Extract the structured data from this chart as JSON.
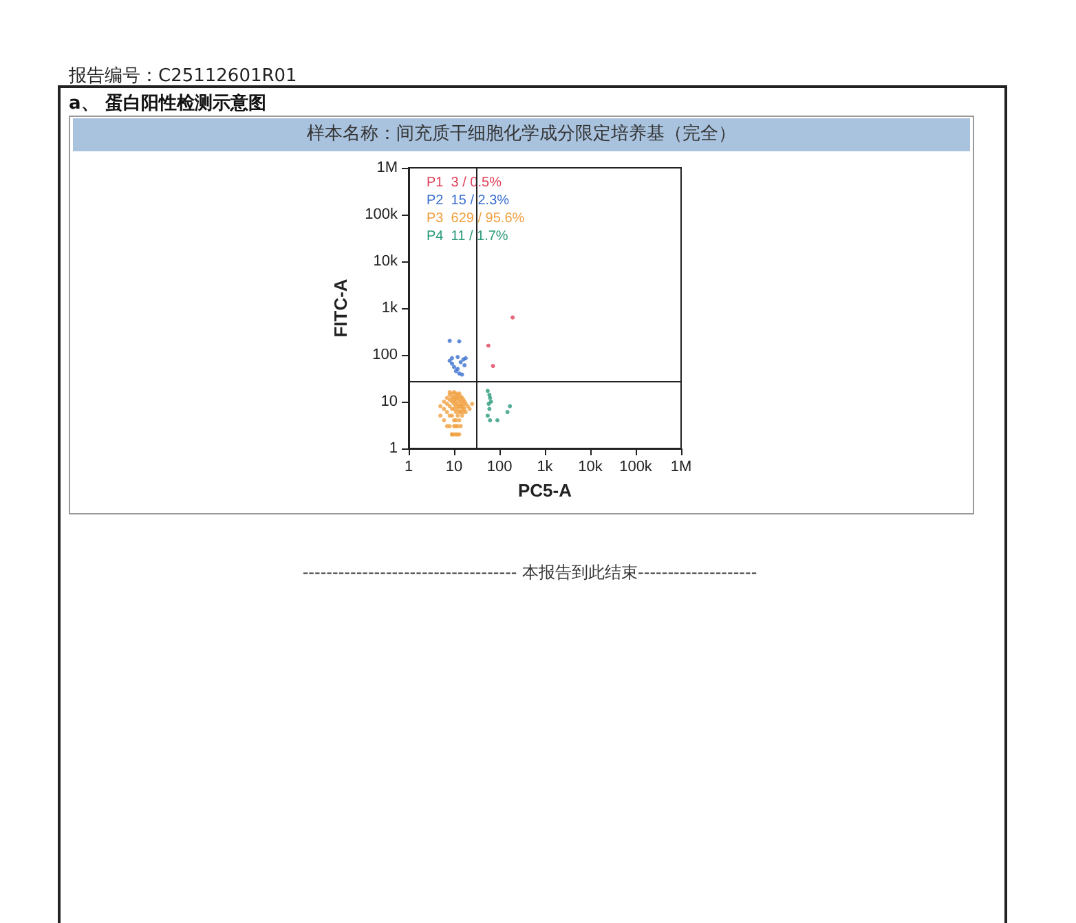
{
  "chart_data": {
    "type": "scatter",
    "title": "样本名称：间充质干细胞化学成分限定培养基（完全）",
    "subtitle": "a、 蛋白阳性检测示意图",
    "xlabel": "PC5-A",
    "ylabel": "FITC-A",
    "log": "xy",
    "grid": false,
    "legend": "top left",
    "marker": "circle",
    "xlim": [
      1,
      1000000
    ],
    "ylim": [
      1,
      1000000
    ],
    "xticks": [
      1,
      10,
      100,
      {
        "value": 1000,
        "label": "1k"
      },
      {
        "value": 10000,
        "label": "10k"
      },
      {
        "value": 100000,
        "label": "100k"
      },
      {
        "value": 1000000,
        "label": "1M"
      }
    ],
    "yticks": [
      1,
      10,
      100,
      {
        "value": 1000,
        "label": "1k"
      },
      {
        "value": 10000,
        "label": "10k"
      },
      {
        "value": 100000,
        "label": "100k"
      },
      {
        "value": 1000000,
        "label": "1M"
      }
    ],
    "ref_lines": [
      {
        "axis": "x",
        "value": 31,
        "color": "#222222"
      },
      {
        "axis": "y",
        "value": 28,
        "color": "#222222"
      }
    ],
    "annotations": [
      "报告编号：C25112601R01",
      "------------------------------------ 本报告到此结束--------------------"
    ],
    "series": [
      {
        "name": "P1  3 / 0.5%",
        "color": "#e0405a",
        "x": [
          195,
          57,
          72
        ],
        "values": [
          630,
          158,
          58
        ]
      },
      {
        "name": "P2  15 / 2.3%",
        "color": "#3a6fd0",
        "x": [
          8,
          13,
          8,
          9,
          10,
          12,
          14,
          16,
          18,
          11,
          13,
          15,
          9,
          17,
          12
        ],
        "values": [
          200,
          195,
          75,
          65,
          55,
          50,
          70,
          80,
          85,
          45,
          40,
          38,
          85,
          60,
          90
        ]
      },
      {
        "name": "P3  629 / 95.6%",
        "color": "#f0a040",
        "x": [
          5,
          5,
          6,
          6,
          6,
          7,
          7,
          7,
          7,
          8,
          8,
          8,
          8,
          8,
          9,
          9,
          9,
          9,
          9,
          9,
          10,
          10,
          10,
          10,
          10,
          10,
          10,
          11,
          11,
          11,
          11,
          11,
          11,
          11,
          12,
          12,
          12,
          12,
          12,
          12,
          13,
          13,
          13,
          13,
          13,
          14,
          14,
          14,
          14,
          14,
          15,
          15,
          15,
          15,
          16,
          16,
          16,
          17,
          17,
          18,
          18,
          20,
          22,
          25,
          9,
          10,
          11,
          12,
          8,
          13
        ],
        "values": [
          8,
          5,
          10,
          7,
          4,
          12,
          9,
          6,
          3,
          14,
          11,
          8,
          5,
          3,
          15,
          12,
          10,
          7,
          5,
          2,
          16,
          13,
          11,
          9,
          7,
          4,
          3,
          15,
          12,
          10,
          8,
          6,
          4,
          2,
          14,
          12,
          9,
          7,
          5,
          3,
          15,
          11,
          8,
          6,
          4,
          13,
          10,
          8,
          6,
          3,
          12,
          9,
          7,
          5,
          11,
          8,
          6,
          10,
          7,
          9,
          6,
          8,
          7,
          9,
          2,
          2,
          3,
          2,
          16,
          2
        ]
      },
      {
        "name": "P4  11 / 1.7%",
        "color": "#2a9a7a",
        "x": [
          55,
          60,
          62,
          58,
          60,
          55,
          62,
          90,
          150,
          170,
          65
        ],
        "values": [
          17,
          14,
          12,
          9,
          7,
          5,
          4,
          4,
          6,
          8,
          10
        ]
      }
    ]
  }
}
